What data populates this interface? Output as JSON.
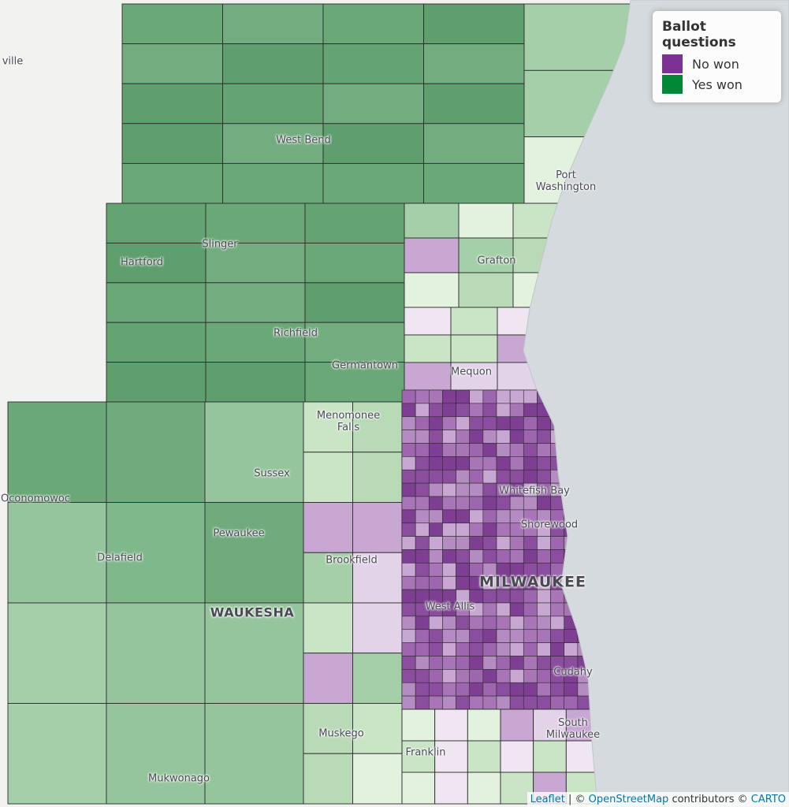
{
  "legend": {
    "title": "Ballot questions",
    "items": [
      {
        "label": "No won",
        "color": "#7b3294"
      },
      {
        "label": "Yes won",
        "color": "#008837"
      }
    ]
  },
  "places": [
    "ville",
    "West Bend",
    "Port Washington",
    "Hartford",
    "Slinger",
    "Grafton",
    "Richfield",
    "Germantown",
    "Mequon",
    "Menomonee Falls",
    "Sussex",
    "Whitefish Bay",
    "Oconomowoc",
    "Shorewood",
    "Pewaukee",
    "Delafield",
    "Brookfield",
    "MILWAUKEE",
    "West Allis",
    "WAUKESHA",
    "Cudahy",
    "South Milwaukee",
    "Muskego",
    "Franklin",
    "Mukwonago"
  ],
  "attribution": {
    "leaflet": "Leaflet",
    "sep": "| ©",
    "osm": "OpenStreetMap",
    "contrib": "contributors ©",
    "carto": "CARTO"
  }
}
